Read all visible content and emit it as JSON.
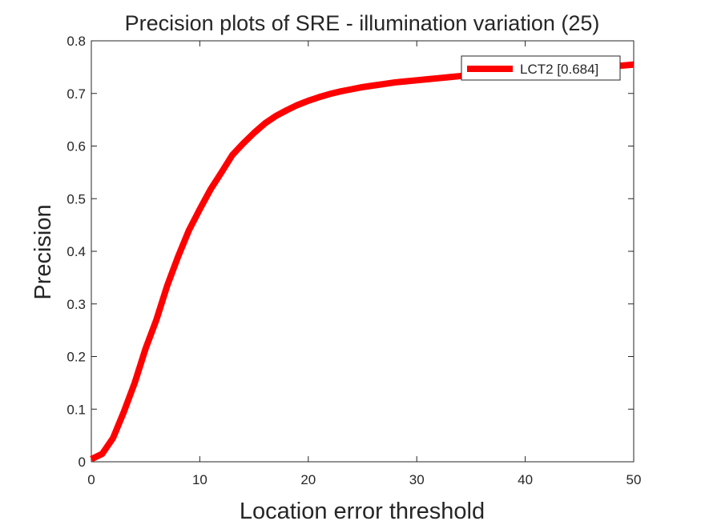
{
  "chart_data": {
    "type": "line",
    "title": "Precision plots of SRE - illumination variation (25)",
    "xlabel": "Location error threshold",
    "ylabel": "Precision",
    "xlim": [
      0,
      50
    ],
    "ylim": [
      0,
      0.8
    ],
    "x_ticks": [
      "0",
      "10",
      "20",
      "30",
      "40",
      "50"
    ],
    "y_ticks": [
      "0",
      "0.1",
      "0.2",
      "0.3",
      "0.4",
      "0.5",
      "0.6",
      "0.7",
      "0.8"
    ],
    "grid": false,
    "legend_position": "top-right",
    "series": [
      {
        "name": "LCT2 [0.684]",
        "color": "#ff0000",
        "x": [
          0,
          1,
          2,
          3,
          4,
          5,
          6,
          7,
          8,
          9,
          10,
          11,
          12,
          13,
          14,
          15,
          16,
          17,
          18,
          19,
          20,
          21,
          22,
          23,
          24,
          25,
          26,
          27,
          28,
          29,
          30,
          31,
          32,
          33,
          34,
          35,
          36,
          37,
          38,
          39,
          40,
          41,
          42,
          43,
          44,
          45,
          46,
          47,
          48,
          49,
          50
        ],
        "values": [
          0.005,
          0.015,
          0.045,
          0.095,
          0.15,
          0.215,
          0.27,
          0.335,
          0.39,
          0.44,
          0.48,
          0.518,
          0.55,
          0.583,
          0.605,
          0.625,
          0.643,
          0.657,
          0.668,
          0.678,
          0.686,
          0.693,
          0.699,
          0.704,
          0.708,
          0.712,
          0.715,
          0.718,
          0.721,
          0.723,
          0.725,
          0.727,
          0.729,
          0.731,
          0.733,
          0.735,
          0.737,
          0.738,
          0.739,
          0.741,
          0.742,
          0.743,
          0.744,
          0.746,
          0.747,
          0.748,
          0.75,
          0.751,
          0.752,
          0.753,
          0.755
        ]
      }
    ]
  }
}
